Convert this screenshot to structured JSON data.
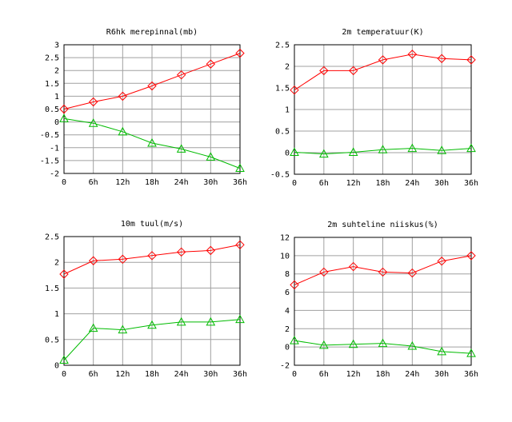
{
  "chart_data": [
    {
      "type": "line",
      "title": "R6hk merepinnal(mb)",
      "categories": [
        "0",
        "6h",
        "12h",
        "18h",
        "24h",
        "30h",
        "36h"
      ],
      "ylim": [
        -2,
        3
      ],
      "yticks": [
        "-2",
        "-1.5",
        "-1",
        "-0.5",
        "0",
        "0.5",
        "1",
        "1.5",
        "2",
        "2.5",
        "3"
      ],
      "grid": true,
      "series": [
        {
          "values": [
            0.5,
            0.78,
            1.0,
            1.4,
            1.83,
            2.25,
            2.67
          ],
          "color": "#ff0000",
          "marker": "diamond"
        },
        {
          "values": [
            0.13,
            -0.05,
            -0.38,
            -0.82,
            -1.05,
            -1.36,
            -1.8
          ],
          "color": "#00bb00",
          "marker": "triangle"
        }
      ]
    },
    {
      "type": "line",
      "title": "2m temperatuur(K)",
      "categories": [
        "0",
        "6h",
        "12h",
        "18h",
        "24h",
        "30h",
        "36h"
      ],
      "ylim": [
        -0.5,
        2.5
      ],
      "yticks": [
        "-0.5",
        "0",
        "0.5",
        "1",
        "1.5",
        "2",
        "2.5"
      ],
      "grid": true,
      "series": [
        {
          "values": [
            1.45,
            1.9,
            1.9,
            2.15,
            2.28,
            2.18,
            2.15
          ],
          "color": "#ff0000",
          "marker": "diamond"
        },
        {
          "values": [
            0.01,
            -0.03,
            0.01,
            0.07,
            0.1,
            0.05,
            0.1
          ],
          "color": "#00bb00",
          "marker": "triangle"
        }
      ]
    },
    {
      "type": "line",
      "title": "10m tuul(m/s)",
      "categories": [
        "0",
        "6h",
        "12h",
        "18h",
        "24h",
        "30h",
        "36h"
      ],
      "ylim": [
        0,
        2.5
      ],
      "yticks": [
        "0",
        "0.5",
        "1",
        "1.5",
        "2",
        "2.5"
      ],
      "grid": true,
      "series": [
        {
          "values": [
            1.77,
            2.03,
            2.06,
            2.13,
            2.2,
            2.23,
            2.34
          ],
          "color": "#ff0000",
          "marker": "diamond"
        },
        {
          "values": [
            0.1,
            0.72,
            0.69,
            0.78,
            0.84,
            0.84,
            0.89
          ],
          "color": "#00bb00",
          "marker": "triangle"
        }
      ]
    },
    {
      "type": "line",
      "title": "2m suhteline niiskus(%)",
      "categories": [
        "0",
        "6h",
        "12h",
        "18h",
        "24h",
        "30h",
        "36h"
      ],
      "ylim": [
        -2,
        12
      ],
      "yticks": [
        "-2",
        "0",
        "2",
        "4",
        "6",
        "8",
        "10",
        "12"
      ],
      "grid": true,
      "series": [
        {
          "values": [
            6.8,
            8.2,
            8.8,
            8.2,
            8.1,
            9.4,
            10.0
          ],
          "color": "#ff0000",
          "marker": "diamond"
        },
        {
          "values": [
            0.7,
            0.2,
            0.3,
            0.4,
            0.1,
            -0.5,
            -0.7
          ],
          "color": "#00bb00",
          "marker": "triangle"
        }
      ]
    }
  ]
}
